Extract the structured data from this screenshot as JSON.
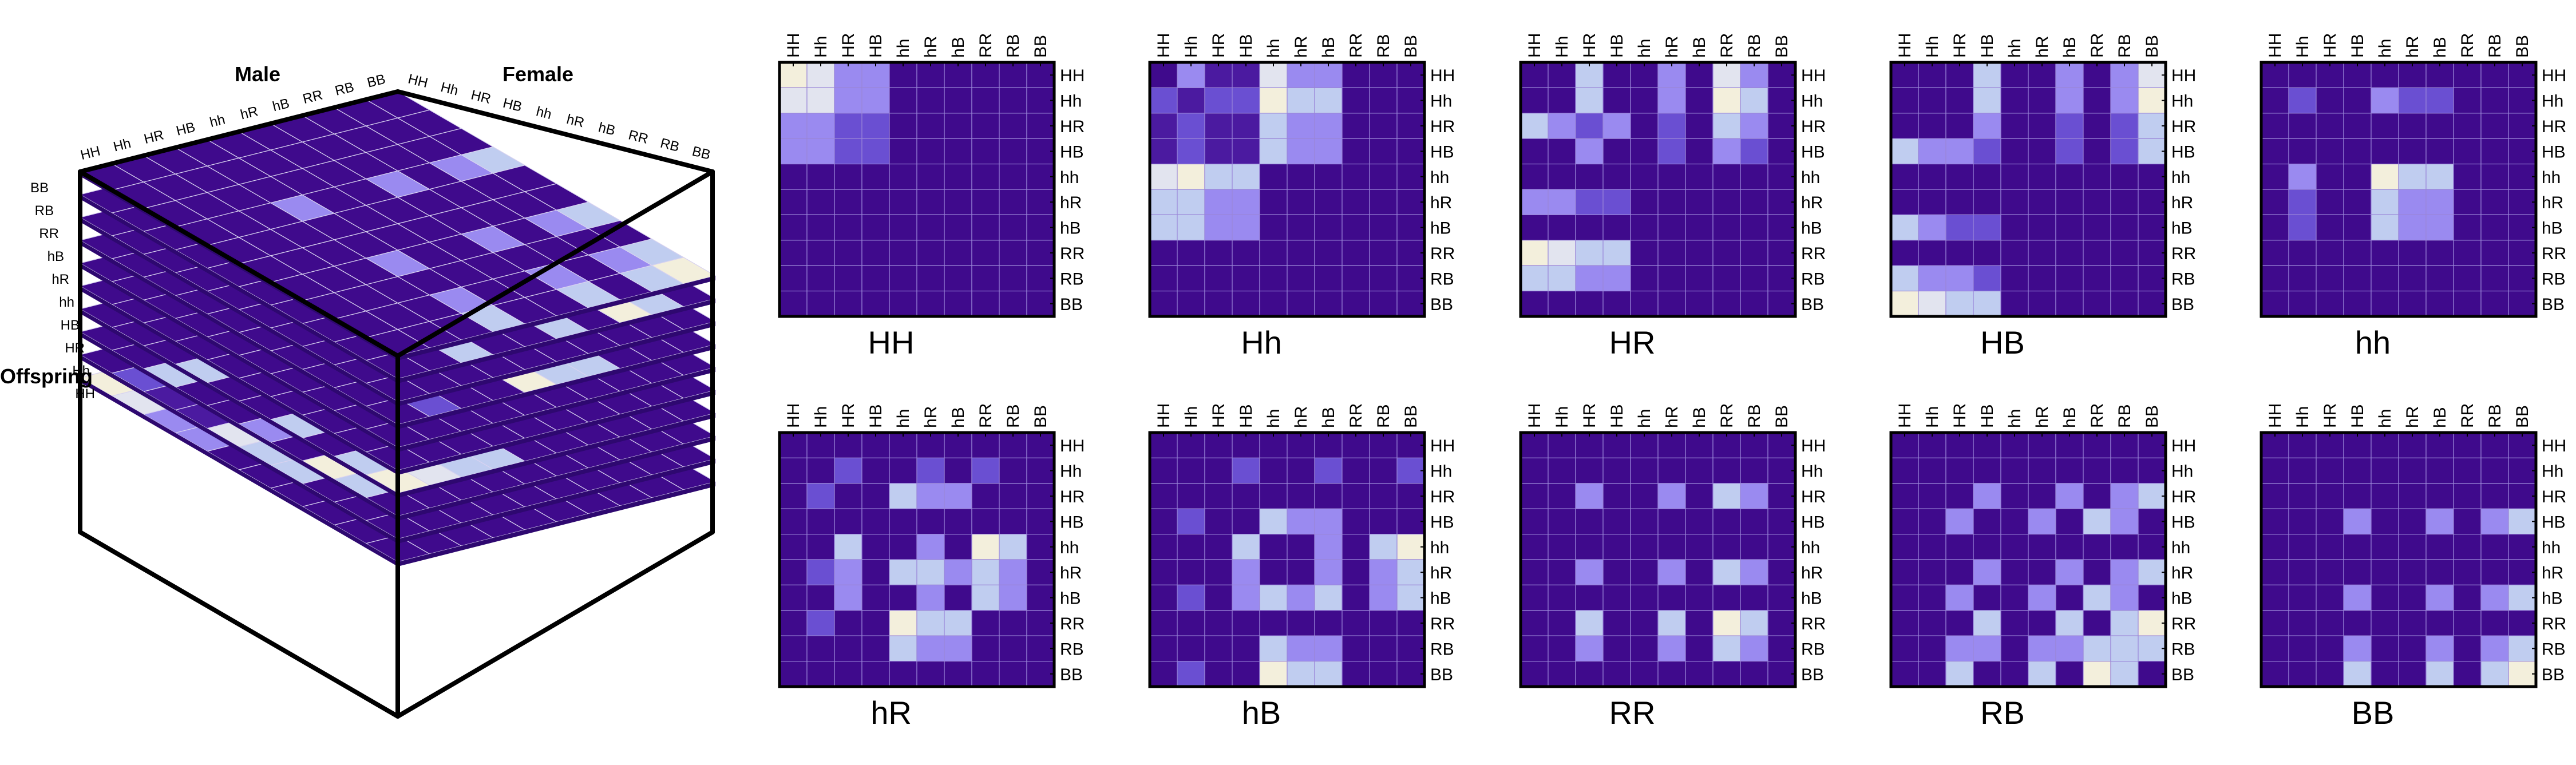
{
  "genotypes": [
    "HH",
    "Hh",
    "HR",
    "HB",
    "hh",
    "hR",
    "hB",
    "RR",
    "RB",
    "BB"
  ],
  "cube": {
    "male_label": "Male",
    "female_label": "Female",
    "offspring_label": "Offspring"
  },
  "colors": {
    "scale": [
      "#3f0a8c",
      "#4b1aa0",
      "#6a4fd2",
      "#9a8af0",
      "#c0cdf0",
      "#e2e4ef",
      "#f3efdc"
    ],
    "frame": "#000000",
    "cell_border": "#9a86d8"
  },
  "chart_data": [
    {
      "type": "heatmap",
      "title": "HH",
      "x_tick_labels": [
        "HH",
        "Hh",
        "HR",
        "HB",
        "hh",
        "hR",
        "hB",
        "RR",
        "RB",
        "BB"
      ],
      "y_tick_labels": [
        "HH",
        "Hh",
        "HR",
        "HB",
        "hh",
        "hR",
        "hB",
        "RR",
        "RB",
        "BB"
      ],
      "values": [
        [
          6,
          5,
          3,
          3,
          0,
          0,
          0,
          0,
          0,
          0
        ],
        [
          5,
          5,
          3,
          3,
          0,
          0,
          0,
          0,
          0,
          0
        ],
        [
          3,
          3,
          2,
          2,
          0,
          0,
          0,
          0,
          0,
          0
        ],
        [
          3,
          3,
          2,
          2,
          0,
          0,
          0,
          0,
          0,
          0
        ],
        [
          0,
          0,
          0,
          0,
          0,
          0,
          0,
          0,
          0,
          0
        ],
        [
          0,
          0,
          0,
          0,
          0,
          0,
          0,
          0,
          0,
          0
        ],
        [
          0,
          0,
          0,
          0,
          0,
          0,
          0,
          0,
          0,
          0
        ],
        [
          0,
          0,
          0,
          0,
          0,
          0,
          0,
          0,
          0,
          0
        ],
        [
          0,
          0,
          0,
          0,
          0,
          0,
          0,
          0,
          0,
          0
        ],
        [
          0,
          0,
          0,
          0,
          0,
          0,
          0,
          0,
          0,
          0
        ]
      ]
    },
    {
      "type": "heatmap",
      "title": "Hh",
      "x_tick_labels": [
        "HH",
        "Hh",
        "HR",
        "HB",
        "hh",
        "hR",
        "hB",
        "RR",
        "RB",
        "BB"
      ],
      "y_tick_labels": [
        "HH",
        "Hh",
        "HR",
        "HB",
        "hh",
        "hR",
        "hB",
        "RR",
        "RB",
        "BB"
      ],
      "values": [
        [
          0,
          3,
          1,
          1,
          5,
          3,
          3,
          0,
          0,
          0
        ],
        [
          2,
          1,
          2,
          2,
          6,
          4,
          4,
          0,
          0,
          0
        ],
        [
          1,
          2,
          1,
          1,
          4,
          3,
          3,
          0,
          0,
          0
        ],
        [
          1,
          2,
          1,
          1,
          4,
          3,
          3,
          0,
          0,
          0
        ],
        [
          5,
          6,
          4,
          4,
          0,
          0,
          0,
          0,
          0,
          0
        ],
        [
          4,
          4,
          3,
          3,
          0,
          0,
          0,
          0,
          0,
          0
        ],
        [
          4,
          4,
          3,
          3,
          0,
          0,
          0,
          0,
          0,
          0
        ],
        [
          0,
          0,
          0,
          0,
          0,
          0,
          0,
          0,
          0,
          0
        ],
        [
          0,
          0,
          0,
          0,
          0,
          0,
          0,
          0,
          0,
          0
        ],
        [
          0,
          0,
          0,
          0,
          0,
          0,
          0,
          0,
          0,
          0
        ]
      ]
    },
    {
      "type": "heatmap",
      "title": "HR",
      "x_tick_labels": [
        "HH",
        "Hh",
        "HR",
        "HB",
        "hh",
        "hR",
        "hB",
        "RR",
        "RB",
        "BB"
      ],
      "y_tick_labels": [
        "HH",
        "Hh",
        "HR",
        "HB",
        "hh",
        "hR",
        "hB",
        "RR",
        "RB",
        "BB"
      ],
      "values": [
        [
          0,
          0,
          4,
          0,
          0,
          3,
          0,
          5,
          3,
          0
        ],
        [
          0,
          0,
          4,
          0,
          0,
          3,
          0,
          6,
          4,
          0
        ],
        [
          4,
          3,
          2,
          3,
          0,
          2,
          0,
          4,
          3,
          0
        ],
        [
          0,
          0,
          3,
          0,
          0,
          2,
          0,
          3,
          2,
          0
        ],
        [
          0,
          0,
          0,
          0,
          0,
          0,
          0,
          0,
          0,
          0
        ],
        [
          3,
          3,
          2,
          2,
          0,
          0,
          0,
          0,
          0,
          0
        ],
        [
          0,
          0,
          0,
          0,
          0,
          0,
          0,
          0,
          0,
          0
        ],
        [
          6,
          5,
          4,
          4,
          0,
          0,
          0,
          0,
          0,
          0
        ],
        [
          4,
          4,
          3,
          3,
          0,
          0,
          0,
          0,
          0,
          0
        ],
        [
          0,
          0,
          0,
          0,
          0,
          0,
          0,
          0,
          0,
          0
        ]
      ]
    },
    {
      "type": "heatmap",
      "title": "HB",
      "x_tick_labels": [
        "HH",
        "Hh",
        "HR",
        "HB",
        "hh",
        "hR",
        "hB",
        "RR",
        "RB",
        "BB"
      ],
      "y_tick_labels": [
        "HH",
        "Hh",
        "HR",
        "HB",
        "hh",
        "hR",
        "hB",
        "RR",
        "RB",
        "BB"
      ],
      "values": [
        [
          0,
          0,
          0,
          4,
          0,
          0,
          3,
          0,
          3,
          5
        ],
        [
          0,
          0,
          0,
          4,
          0,
          0,
          3,
          0,
          3,
          6
        ],
        [
          0,
          0,
          0,
          3,
          0,
          0,
          2,
          0,
          2,
          4
        ],
        [
          4,
          3,
          3,
          2,
          0,
          0,
          2,
          0,
          2,
          4
        ],
        [
          0,
          0,
          0,
          0,
          0,
          0,
          0,
          0,
          0,
          0
        ],
        [
          0,
          0,
          0,
          0,
          0,
          0,
          0,
          0,
          0,
          0
        ],
        [
          4,
          3,
          2,
          2,
          0,
          0,
          0,
          0,
          0,
          0
        ],
        [
          0,
          0,
          0,
          0,
          0,
          0,
          0,
          0,
          0,
          0
        ],
        [
          4,
          3,
          3,
          2,
          0,
          0,
          0,
          0,
          0,
          0
        ],
        [
          6,
          5,
          4,
          4,
          0,
          0,
          0,
          0,
          0,
          0
        ]
      ]
    },
    {
      "type": "heatmap",
      "title": "hh",
      "x_tick_labels": [
        "HH",
        "Hh",
        "HR",
        "HB",
        "hh",
        "hR",
        "hB",
        "RR",
        "RB",
        "BB"
      ],
      "y_tick_labels": [
        "HH",
        "Hh",
        "HR",
        "HB",
        "hh",
        "hR",
        "hB",
        "RR",
        "RB",
        "BB"
      ],
      "values": [
        [
          0,
          0,
          0,
          0,
          0,
          0,
          0,
          0,
          0,
          0
        ],
        [
          0,
          2,
          0,
          0,
          3,
          2,
          2,
          0,
          0,
          0
        ],
        [
          0,
          0,
          0,
          0,
          0,
          0,
          0,
          0,
          0,
          0
        ],
        [
          0,
          0,
          0,
          0,
          0,
          0,
          0,
          0,
          0,
          0
        ],
        [
          0,
          3,
          0,
          0,
          6,
          4,
          4,
          0,
          0,
          0
        ],
        [
          0,
          2,
          0,
          0,
          4,
          3,
          3,
          0,
          0,
          0
        ],
        [
          0,
          2,
          0,
          0,
          4,
          3,
          3,
          0,
          0,
          0
        ],
        [
          0,
          0,
          0,
          0,
          0,
          0,
          0,
          0,
          0,
          0
        ],
        [
          0,
          0,
          0,
          0,
          0,
          0,
          0,
          0,
          0,
          0
        ],
        [
          0,
          0,
          0,
          0,
          0,
          0,
          0,
          0,
          0,
          0
        ]
      ]
    },
    {
      "type": "heatmap",
      "title": "hR",
      "x_tick_labels": [
        "HH",
        "Hh",
        "HR",
        "HB",
        "hh",
        "hR",
        "hB",
        "RR",
        "RB",
        "BB"
      ],
      "y_tick_labels": [
        "HH",
        "Hh",
        "HR",
        "HB",
        "hh",
        "hR",
        "hB",
        "RR",
        "RB",
        "BB"
      ],
      "values": [
        [
          0,
          0,
          0,
          0,
          0,
          0,
          0,
          0,
          0,
          0
        ],
        [
          0,
          0,
          2,
          0,
          0,
          2,
          0,
          2,
          0,
          0
        ],
        [
          0,
          2,
          0,
          0,
          4,
          3,
          3,
          0,
          0,
          0
        ],
        [
          0,
          0,
          0,
          0,
          0,
          0,
          0,
          0,
          0,
          0
        ],
        [
          0,
          0,
          4,
          0,
          0,
          3,
          0,
          6,
          4,
          0
        ],
        [
          0,
          2,
          3,
          0,
          4,
          4,
          3,
          4,
          3,
          0
        ],
        [
          0,
          0,
          3,
          0,
          0,
          3,
          0,
          4,
          3,
          0
        ],
        [
          0,
          2,
          0,
          0,
          6,
          4,
          4,
          0,
          0,
          0
        ],
        [
          0,
          0,
          0,
          0,
          4,
          3,
          3,
          0,
          0,
          0
        ],
        [
          0,
          0,
          0,
          0,
          0,
          0,
          0,
          0,
          0,
          0
        ]
      ]
    },
    {
      "type": "heatmap",
      "title": "hB",
      "x_tick_labels": [
        "HH",
        "Hh",
        "HR",
        "HB",
        "hh",
        "hR",
        "hB",
        "RR",
        "RB",
        "BB"
      ],
      "y_tick_labels": [
        "HH",
        "Hh",
        "HR",
        "HB",
        "hh",
        "hR",
        "hB",
        "RR",
        "RB",
        "BB"
      ],
      "values": [
        [
          0,
          0,
          0,
          0,
          0,
          0,
          0,
          0,
          0,
          0
        ],
        [
          0,
          0,
          0,
          2,
          0,
          0,
          2,
          0,
          0,
          2
        ],
        [
          0,
          0,
          0,
          0,
          0,
          0,
          0,
          0,
          0,
          0
        ],
        [
          0,
          2,
          0,
          0,
          4,
          3,
          3,
          0,
          0,
          0
        ],
        [
          0,
          0,
          0,
          4,
          0,
          0,
          3,
          0,
          4,
          6
        ],
        [
          0,
          0,
          0,
          3,
          0,
          0,
          3,
          0,
          3,
          4
        ],
        [
          0,
          2,
          0,
          3,
          4,
          3,
          4,
          0,
          3,
          4
        ],
        [
          0,
          0,
          0,
          0,
          0,
          0,
          0,
          0,
          0,
          0
        ],
        [
          0,
          0,
          0,
          0,
          4,
          3,
          3,
          0,
          0,
          0
        ],
        [
          0,
          2,
          0,
          0,
          6,
          4,
          4,
          0,
          0,
          0
        ]
      ]
    },
    {
      "type": "heatmap",
      "title": "RR",
      "x_tick_labels": [
        "HH",
        "Hh",
        "HR",
        "HB",
        "hh",
        "hR",
        "hB",
        "RR",
        "RB",
        "BB"
      ],
      "y_tick_labels": [
        "HH",
        "Hh",
        "HR",
        "HB",
        "hh",
        "hR",
        "hB",
        "RR",
        "RB",
        "BB"
      ],
      "values": [
        [
          0,
          0,
          0,
          0,
          0,
          0,
          0,
          0,
          0,
          0
        ],
        [
          0,
          0,
          0,
          0,
          0,
          0,
          0,
          0,
          0,
          0
        ],
        [
          0,
          0,
          3,
          0,
          0,
          3,
          0,
          4,
          3,
          0
        ],
        [
          0,
          0,
          0,
          0,
          0,
          0,
          0,
          0,
          0,
          0
        ],
        [
          0,
          0,
          0,
          0,
          0,
          0,
          0,
          0,
          0,
          0
        ],
        [
          0,
          0,
          3,
          0,
          0,
          3,
          0,
          4,
          3,
          0
        ],
        [
          0,
          0,
          0,
          0,
          0,
          0,
          0,
          0,
          0,
          0
        ],
        [
          0,
          0,
          4,
          0,
          0,
          4,
          0,
          6,
          4,
          0
        ],
        [
          0,
          0,
          3,
          0,
          0,
          3,
          0,
          4,
          3,
          0
        ],
        [
          0,
          0,
          0,
          0,
          0,
          0,
          0,
          0,
          0,
          0
        ]
      ]
    },
    {
      "type": "heatmap",
      "title": "RB",
      "x_tick_labels": [
        "HH",
        "Hh",
        "HR",
        "HB",
        "hh",
        "hR",
        "hB",
        "RR",
        "RB",
        "BB"
      ],
      "y_tick_labels": [
        "HH",
        "Hh",
        "HR",
        "HB",
        "hh",
        "hR",
        "hB",
        "RR",
        "RB",
        "BB"
      ],
      "values": [
        [
          0,
          0,
          0,
          0,
          0,
          0,
          0,
          0,
          0,
          0
        ],
        [
          0,
          0,
          0,
          0,
          0,
          0,
          0,
          0,
          0,
          0
        ],
        [
          0,
          0,
          0,
          3,
          0,
          0,
          3,
          0,
          3,
          4
        ],
        [
          0,
          0,
          3,
          0,
          0,
          3,
          0,
          4,
          3,
          0
        ],
        [
          0,
          0,
          0,
          0,
          0,
          0,
          0,
          0,
          0,
          0
        ],
        [
          0,
          0,
          0,
          3,
          0,
          0,
          3,
          0,
          3,
          4
        ],
        [
          0,
          0,
          3,
          0,
          0,
          3,
          0,
          4,
          3,
          0
        ],
        [
          0,
          0,
          0,
          4,
          0,
          0,
          4,
          0,
          4,
          6
        ],
        [
          0,
          0,
          3,
          3,
          0,
          3,
          3,
          4,
          4,
          4
        ],
        [
          0,
          0,
          4,
          0,
          0,
          4,
          0,
          6,
          4,
          0
        ]
      ]
    },
    {
      "type": "heatmap",
      "title": "BB",
      "x_tick_labels": [
        "HH",
        "Hh",
        "HR",
        "HB",
        "hh",
        "hR",
        "hB",
        "RR",
        "RB",
        "BB"
      ],
      "y_tick_labels": [
        "HH",
        "Hh",
        "HR",
        "HB",
        "hh",
        "hR",
        "hB",
        "RR",
        "RB",
        "BB"
      ],
      "values": [
        [
          0,
          0,
          0,
          0,
          0,
          0,
          0,
          0,
          0,
          0
        ],
        [
          0,
          0,
          0,
          0,
          0,
          0,
          0,
          0,
          0,
          0
        ],
        [
          0,
          0,
          0,
          0,
          0,
          0,
          0,
          0,
          0,
          0
        ],
        [
          0,
          0,
          0,
          3,
          0,
          0,
          3,
          0,
          3,
          4
        ],
        [
          0,
          0,
          0,
          0,
          0,
          0,
          0,
          0,
          0,
          0
        ],
        [
          0,
          0,
          0,
          0,
          0,
          0,
          0,
          0,
          0,
          0
        ],
        [
          0,
          0,
          0,
          3,
          0,
          0,
          3,
          0,
          3,
          4
        ],
        [
          0,
          0,
          0,
          0,
          0,
          0,
          0,
          0,
          0,
          0
        ],
        [
          0,
          0,
          0,
          3,
          0,
          0,
          3,
          0,
          3,
          4
        ],
        [
          0,
          0,
          0,
          4,
          0,
          0,
          4,
          0,
          4,
          6
        ]
      ]
    }
  ]
}
